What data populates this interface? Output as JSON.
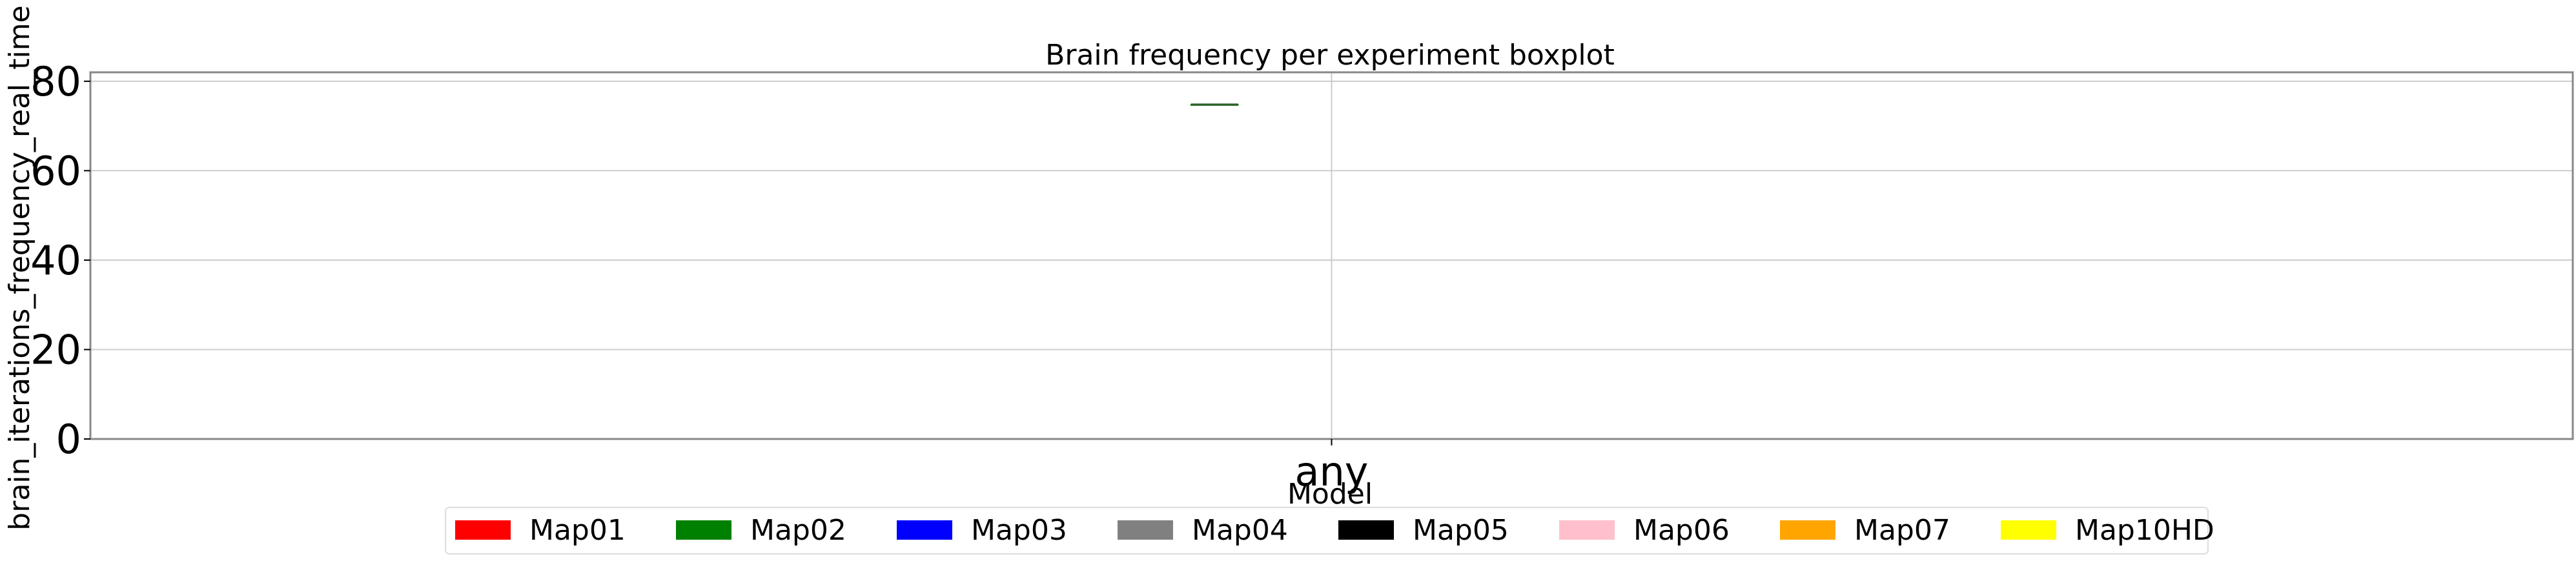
{
  "chart_data": {
    "type": "boxplot",
    "title": "Brain frequency per experiment boxplot",
    "xlabel": "Model",
    "ylabel": "brain_iterations_frequency_real_time",
    "categories": [
      "any"
    ],
    "ylim": [
      0,
      82
    ],
    "yticks": [
      0,
      20,
      40,
      60,
      80
    ],
    "grid": true,
    "legend_position": "bottom-center",
    "series": [
      {
        "name": "Map01",
        "color": "#ff0000",
        "values": []
      },
      {
        "name": "Map02",
        "color": "#008000",
        "values": [
          {
            "category": "any",
            "min": 74.8,
            "q1": 74.8,
            "median": 74.8,
            "q3": 74.8,
            "max": 74.8
          }
        ]
      },
      {
        "name": "Map03",
        "color": "#0000ff",
        "values": []
      },
      {
        "name": "Map04",
        "color": "#808080",
        "values": []
      },
      {
        "name": "Map05",
        "color": "#000000",
        "values": []
      },
      {
        "name": "Map06",
        "color": "#ffc0cb",
        "values": []
      },
      {
        "name": "Map07",
        "color": "#ffa500",
        "values": []
      },
      {
        "name": "Map10HD",
        "color": "#ffff00",
        "values": []
      }
    ]
  }
}
